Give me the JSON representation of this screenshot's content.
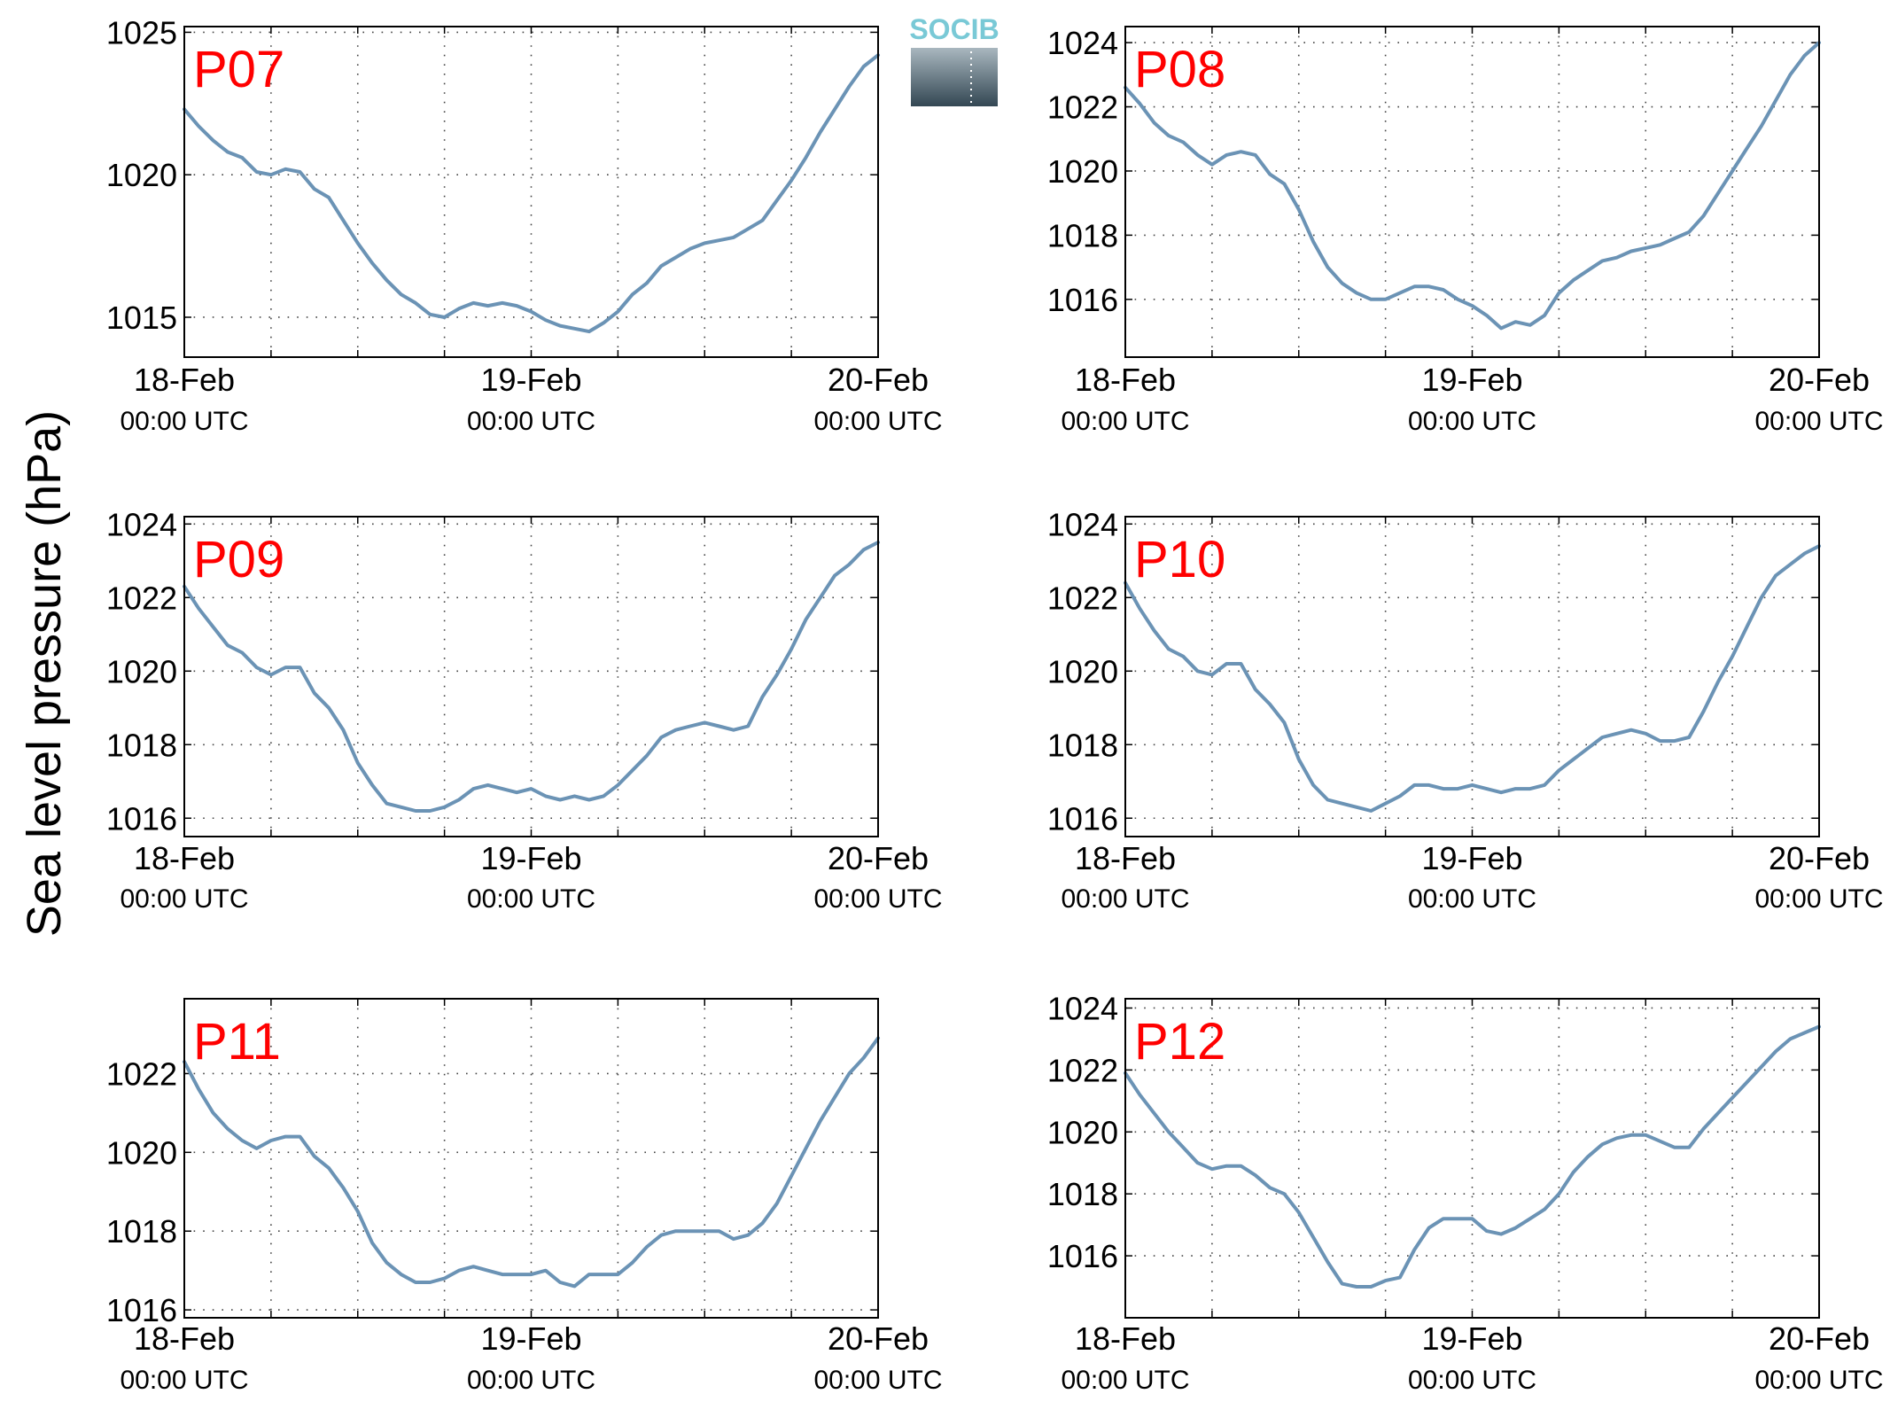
{
  "figure": {
    "ylabel": "Sea level pressure (hPa)",
    "logo": "SOCIB",
    "colors": {
      "line": "#6b93b5",
      "panel_label": "#ff0000",
      "axes": "#000000",
      "grid": "#444444",
      "logo_top": "#79c9d6",
      "logo_bottom": "#334753"
    }
  },
  "chart_data": [
    {
      "type": "line",
      "panel": "P07",
      "xlim": [
        0,
        48
      ],
      "x_ticks": [
        0,
        24,
        48
      ],
      "x_tick_labels": [
        [
          "18-Feb",
          "00:00 UTC"
        ],
        [
          "19-Feb",
          "00:00 UTC"
        ],
        [
          "20-Feb",
          "00:00 UTC"
        ]
      ],
      "x_grid_hours": [
        6,
        12,
        18,
        24,
        30,
        36,
        42
      ],
      "ylim": [
        1013.6,
        1025.2
      ],
      "yticks": [
        1015,
        1020,
        1025
      ],
      "grid": true,
      "series": [
        {
          "x": [
            0,
            1,
            2,
            3,
            4,
            5,
            6,
            7,
            8,
            9,
            10,
            11,
            12,
            13,
            14,
            15,
            16,
            17,
            18,
            19,
            20,
            21,
            22,
            23,
            24,
            25,
            26,
            27,
            28,
            29,
            30,
            31,
            32,
            33,
            34,
            35,
            36,
            37,
            38,
            39,
            40,
            41,
            42,
            43,
            44,
            45,
            46,
            47,
            48
          ],
          "y": [
            1022.3,
            1021.7,
            1021.2,
            1020.8,
            1020.6,
            1020.1,
            1020.0,
            1020.2,
            1020.1,
            1019.5,
            1019.2,
            1018.4,
            1017.6,
            1016.9,
            1016.3,
            1015.8,
            1015.5,
            1015.1,
            1015.0,
            1015.3,
            1015.5,
            1015.4,
            1015.5,
            1015.4,
            1015.2,
            1014.9,
            1014.7,
            1014.6,
            1014.5,
            1014.8,
            1015.2,
            1015.8,
            1016.2,
            1016.8,
            1017.1,
            1017.4,
            1017.6,
            1017.7,
            1017.8,
            1018.1,
            1018.4,
            1019.1,
            1019.8,
            1020.6,
            1021.5,
            1022.3,
            1023.1,
            1023.8,
            1024.2
          ]
        }
      ]
    },
    {
      "type": "line",
      "panel": "P08",
      "xlim": [
        0,
        48
      ],
      "x_ticks": [
        0,
        24,
        48
      ],
      "x_tick_labels": [
        [
          "18-Feb",
          "00:00 UTC"
        ],
        [
          "19-Feb",
          "00:00 UTC"
        ],
        [
          "20-Feb",
          "00:00 UTC"
        ]
      ],
      "x_grid_hours": [
        6,
        12,
        18,
        24,
        30,
        36,
        42
      ],
      "ylim": [
        1014.2,
        1024.5
      ],
      "yticks": [
        1016,
        1018,
        1020,
        1022,
        1024
      ],
      "grid": true,
      "series": [
        {
          "x": [
            0,
            1,
            2,
            3,
            4,
            5,
            6,
            7,
            8,
            9,
            10,
            11,
            12,
            13,
            14,
            15,
            16,
            17,
            18,
            19,
            20,
            21,
            22,
            23,
            24,
            25,
            26,
            27,
            28,
            29,
            30,
            31,
            32,
            33,
            34,
            35,
            36,
            37,
            38,
            39,
            40,
            41,
            42,
            43,
            44,
            45,
            46,
            47,
            48
          ],
          "y": [
            1022.6,
            1022.1,
            1021.5,
            1021.1,
            1020.9,
            1020.5,
            1020.2,
            1020.5,
            1020.6,
            1020.5,
            1019.9,
            1019.6,
            1018.8,
            1017.8,
            1017.0,
            1016.5,
            1016.2,
            1016.0,
            1016.0,
            1016.2,
            1016.4,
            1016.4,
            1016.3,
            1016.0,
            1015.8,
            1015.5,
            1015.1,
            1015.3,
            1015.2,
            1015.5,
            1016.2,
            1016.6,
            1016.9,
            1017.2,
            1017.3,
            1017.5,
            1017.6,
            1017.7,
            1017.9,
            1018.1,
            1018.6,
            1019.3,
            1020.0,
            1020.7,
            1021.4,
            1022.2,
            1023.0,
            1023.6,
            1024.0
          ]
        }
      ]
    },
    {
      "type": "line",
      "panel": "P09",
      "xlim": [
        0,
        48
      ],
      "x_ticks": [
        0,
        24,
        48
      ],
      "x_tick_labels": [
        [
          "18-Feb",
          "00:00 UTC"
        ],
        [
          "19-Feb",
          "00:00 UTC"
        ],
        [
          "20-Feb",
          "00:00 UTC"
        ]
      ],
      "x_grid_hours": [
        6,
        12,
        18,
        24,
        30,
        36,
        42
      ],
      "ylim": [
        1015.5,
        1024.2
      ],
      "yticks": [
        1016,
        1018,
        1020,
        1022,
        1024
      ],
      "grid": true,
      "series": [
        {
          "x": [
            0,
            1,
            2,
            3,
            4,
            5,
            6,
            7,
            8,
            9,
            10,
            11,
            12,
            13,
            14,
            15,
            16,
            17,
            18,
            19,
            20,
            21,
            22,
            23,
            24,
            25,
            26,
            27,
            28,
            29,
            30,
            31,
            32,
            33,
            34,
            35,
            36,
            37,
            38,
            39,
            40,
            41,
            42,
            43,
            44,
            45,
            46,
            47,
            48
          ],
          "y": [
            1022.3,
            1021.7,
            1021.2,
            1020.7,
            1020.5,
            1020.1,
            1019.9,
            1020.1,
            1020.1,
            1019.4,
            1019.0,
            1018.4,
            1017.5,
            1016.9,
            1016.4,
            1016.3,
            1016.2,
            1016.2,
            1016.3,
            1016.5,
            1016.8,
            1016.9,
            1016.8,
            1016.7,
            1016.8,
            1016.6,
            1016.5,
            1016.6,
            1016.5,
            1016.6,
            1016.9,
            1017.3,
            1017.7,
            1018.2,
            1018.4,
            1018.5,
            1018.6,
            1018.5,
            1018.4,
            1018.5,
            1019.3,
            1019.9,
            1020.6,
            1021.4,
            1022.0,
            1022.6,
            1022.9,
            1023.3,
            1023.5
          ]
        }
      ]
    },
    {
      "type": "line",
      "panel": "P10",
      "xlim": [
        0,
        48
      ],
      "x_ticks": [
        0,
        24,
        48
      ],
      "x_tick_labels": [
        [
          "18-Feb",
          "00:00 UTC"
        ],
        [
          "19-Feb",
          "00:00 UTC"
        ],
        [
          "20-Feb",
          "00:00 UTC"
        ]
      ],
      "x_grid_hours": [
        6,
        12,
        18,
        24,
        30,
        36,
        42
      ],
      "ylim": [
        1015.5,
        1024.2
      ],
      "yticks": [
        1016,
        1018,
        1020,
        1022,
        1024
      ],
      "grid": true,
      "series": [
        {
          "x": [
            0,
            1,
            2,
            3,
            4,
            5,
            6,
            7,
            8,
            9,
            10,
            11,
            12,
            13,
            14,
            15,
            16,
            17,
            18,
            19,
            20,
            21,
            22,
            23,
            24,
            25,
            26,
            27,
            28,
            29,
            30,
            31,
            32,
            33,
            34,
            35,
            36,
            37,
            38,
            39,
            40,
            41,
            42,
            43,
            44,
            45,
            46,
            47,
            48
          ],
          "y": [
            1022.4,
            1021.7,
            1021.1,
            1020.6,
            1020.4,
            1020.0,
            1019.9,
            1020.2,
            1020.2,
            1019.5,
            1019.1,
            1018.6,
            1017.6,
            1016.9,
            1016.5,
            1016.4,
            1016.3,
            1016.2,
            1016.4,
            1016.6,
            1016.9,
            1016.9,
            1016.8,
            1016.8,
            1016.9,
            1016.8,
            1016.7,
            1016.8,
            1016.8,
            1016.9,
            1017.3,
            1017.6,
            1017.9,
            1018.2,
            1018.3,
            1018.4,
            1018.3,
            1018.1,
            1018.1,
            1018.2,
            1018.9,
            1019.7,
            1020.4,
            1021.2,
            1022.0,
            1022.6,
            1022.9,
            1023.2,
            1023.4
          ]
        }
      ]
    },
    {
      "type": "line",
      "panel": "P11",
      "xlim": [
        0,
        48
      ],
      "x_ticks": [
        0,
        24,
        48
      ],
      "x_tick_labels": [
        [
          "18-Feb",
          "00:00 UTC"
        ],
        [
          "19-Feb",
          "00:00 UTC"
        ],
        [
          "20-Feb",
          "00:00 UTC"
        ]
      ],
      "x_grid_hours": [
        6,
        12,
        18,
        24,
        30,
        36,
        42
      ],
      "ylim": [
        1015.8,
        1023.9
      ],
      "yticks": [
        1016,
        1018,
        1020,
        1022
      ],
      "grid": true,
      "series": [
        {
          "x": [
            0,
            1,
            2,
            3,
            4,
            5,
            6,
            7,
            8,
            9,
            10,
            11,
            12,
            13,
            14,
            15,
            16,
            17,
            18,
            19,
            20,
            21,
            22,
            23,
            24,
            25,
            26,
            27,
            28,
            29,
            30,
            31,
            32,
            33,
            34,
            35,
            36,
            37,
            38,
            39,
            40,
            41,
            42,
            43,
            44,
            45,
            46,
            47,
            48
          ],
          "y": [
            1022.3,
            1021.6,
            1021.0,
            1020.6,
            1020.3,
            1020.1,
            1020.3,
            1020.4,
            1020.4,
            1019.9,
            1019.6,
            1019.1,
            1018.5,
            1017.7,
            1017.2,
            1016.9,
            1016.7,
            1016.7,
            1016.8,
            1017.0,
            1017.1,
            1017.0,
            1016.9,
            1016.9,
            1016.9,
            1017.0,
            1016.7,
            1016.6,
            1016.9,
            1016.9,
            1016.9,
            1017.2,
            1017.6,
            1017.9,
            1018.0,
            1018.0,
            1018.0,
            1018.0,
            1017.8,
            1017.9,
            1018.2,
            1018.7,
            1019.4,
            1020.1,
            1020.8,
            1021.4,
            1022.0,
            1022.4,
            1022.9
          ]
        }
      ]
    },
    {
      "type": "line",
      "panel": "P12",
      "xlim": [
        0,
        48
      ],
      "x_ticks": [
        0,
        24,
        48
      ],
      "x_tick_labels": [
        [
          "18-Feb",
          "00:00 UTC"
        ],
        [
          "19-Feb",
          "00:00 UTC"
        ],
        [
          "20-Feb",
          "00:00 UTC"
        ]
      ],
      "x_grid_hours": [
        6,
        12,
        18,
        24,
        30,
        36,
        42
      ],
      "ylim": [
        1014.0,
        1024.3
      ],
      "yticks": [
        1016,
        1018,
        1020,
        1022,
        1024
      ],
      "grid": true,
      "series": [
        {
          "x": [
            0,
            1,
            2,
            3,
            4,
            5,
            6,
            7,
            8,
            9,
            10,
            11,
            12,
            13,
            14,
            15,
            16,
            17,
            18,
            19,
            20,
            21,
            22,
            23,
            24,
            25,
            26,
            27,
            28,
            29,
            30,
            31,
            32,
            33,
            34,
            35,
            36,
            37,
            38,
            39,
            40,
            41,
            42,
            43,
            44,
            45,
            46,
            47,
            48
          ],
          "y": [
            1021.9,
            1021.2,
            1020.6,
            1020.0,
            1019.5,
            1019.0,
            1018.8,
            1018.9,
            1018.9,
            1018.6,
            1018.2,
            1018.0,
            1017.4,
            1016.6,
            1015.8,
            1015.1,
            1015.0,
            1015.0,
            1015.2,
            1015.3,
            1016.2,
            1016.9,
            1017.2,
            1017.2,
            1017.2,
            1016.8,
            1016.7,
            1016.9,
            1017.2,
            1017.5,
            1018.0,
            1018.7,
            1019.2,
            1019.6,
            1019.8,
            1019.9,
            1019.9,
            1019.7,
            1019.5,
            1019.5,
            1020.1,
            1020.6,
            1021.1,
            1021.6,
            1022.1,
            1022.6,
            1023.0,
            1023.2,
            1023.4
          ]
        }
      ]
    }
  ]
}
